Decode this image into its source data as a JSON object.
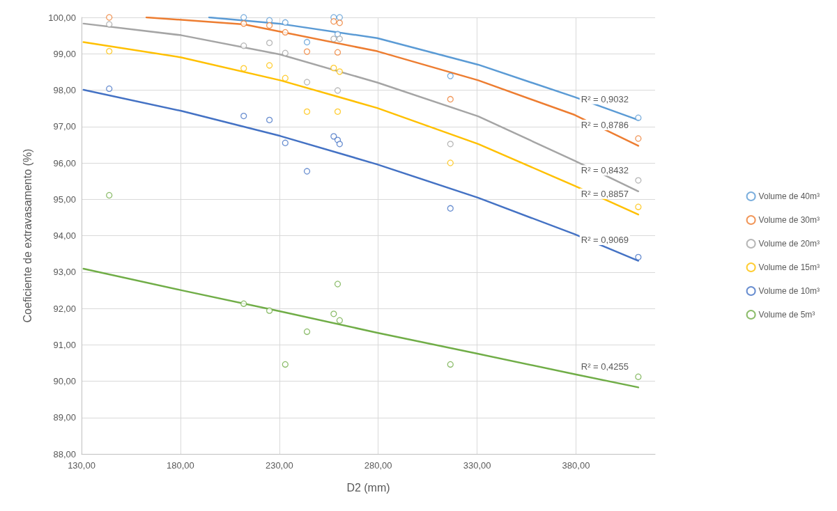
{
  "chart_data": {
    "type": "scatter",
    "xlabel": "D2 (mm)",
    "ylabel": "Coeficiente de extravasamento (%)",
    "xlim": [
      130,
      420
    ],
    "ylim": [
      88,
      100
    ],
    "xticks": [
      {
        "value": 130,
        "label": "130,00"
      },
      {
        "value": 180,
        "label": "180,00"
      },
      {
        "value": 230,
        "label": "230,00"
      },
      {
        "value": 280,
        "label": "280,00"
      },
      {
        "value": 330,
        "label": "330,00"
      },
      {
        "value": 380,
        "label": "380,00"
      }
    ],
    "yticks": [
      {
        "value": 88,
        "label": "88,00"
      },
      {
        "value": 89,
        "label": "89,00"
      },
      {
        "value": 90,
        "label": "90,00"
      },
      {
        "value": 91,
        "label": "91,00"
      },
      {
        "value": 92,
        "label": "92,00"
      },
      {
        "value": 93,
        "label": "93,00"
      },
      {
        "value": 94,
        "label": "94,00"
      },
      {
        "value": 95,
        "label": "95,00"
      },
      {
        "value": 96,
        "label": "96,00"
      },
      {
        "value": 97,
        "label": "97,00"
      },
      {
        "value": 98,
        "label": "98,00"
      },
      {
        "value": 99,
        "label": "99,00"
      },
      {
        "value": 100,
        "label": "100,00"
      }
    ],
    "grid": true,
    "legend": "right",
    "marker": "circle",
    "x": [
      144,
      212,
      225,
      233,
      244,
      257.5,
      259.5,
      260.5,
      316.5,
      411.5
    ],
    "series": [
      {
        "name": "Volume de 40m³",
        "color": "#5b9bd5",
        "values": [
          null,
          100,
          99.92,
          99.86,
          99.32,
          100,
          99.54,
          100,
          98.39,
          97.24
        ]
      },
      {
        "name": "Volume de 30m³",
        "color": "#ed7d31",
        "values": [
          100,
          99.83,
          99.78,
          99.59,
          99.06,
          99.89,
          99.04,
          99.85,
          97.75,
          96.67
        ]
      },
      {
        "name": "Volume de 20m³",
        "color": "#a5a5a5",
        "values": [
          99.81,
          99.22,
          99.3,
          99.02,
          98.22,
          99.41,
          97.99,
          99.41,
          96.52,
          95.52
        ]
      },
      {
        "name": "Volume de 15m³",
        "color": "#ffc000",
        "values": [
          99.07,
          98.6,
          98.68,
          98.33,
          97.41,
          98.61,
          97.41,
          98.51,
          96,
          94.79
        ]
      },
      {
        "name": "Volume de 10m³",
        "color": "#4472c4",
        "values": [
          98.04,
          97.29,
          97.18,
          96.55,
          95.77,
          96.73,
          96.63,
          96.52,
          94.75,
          93.41
        ]
      },
      {
        "name": "Volume de 5m³",
        "color": "#70ad47",
        "values": [
          95.11,
          92.13,
          91.94,
          90.46,
          91.36,
          91.85,
          92.67,
          91.67,
          90.46,
          90.12
        ]
      },
      {
        "type": "line",
        "marker": "none",
        "color": "#5b9bd5",
        "x": [
          194.5,
          229.8,
          279.5,
          330.6,
          379.3,
          411.5
        ],
        "values": [
          100,
          99.83,
          99.43,
          98.7,
          97.81,
          97.18
        ]
      },
      {
        "type": "line",
        "marker": "none",
        "color": "#ed7d31",
        "x": [
          162.8,
          212.2,
          279.5,
          330.6,
          379.3,
          411.5
        ],
        "values": [
          100,
          99.81,
          99.07,
          98.27,
          97.32,
          96.47
        ]
      },
      {
        "type": "line",
        "marker": "none",
        "color": "#a5a5a5",
        "x": [
          131,
          180.4,
          230.5,
          279.5,
          330.6,
          379.3,
          411.5
        ],
        "values": [
          99.83,
          99.51,
          98.98,
          98.21,
          97.28,
          96.06,
          95.22
        ]
      },
      {
        "type": "line",
        "marker": "none",
        "color": "#ffc000",
        "x": [
          131,
          180.4,
          230.5,
          279.5,
          330.6,
          379.3,
          411.5
        ],
        "values": [
          99.32,
          98.9,
          98.27,
          97.51,
          96.52,
          95.37,
          94.58
        ]
      },
      {
        "type": "line",
        "marker": "none",
        "color": "#4472c4",
        "x": [
          131,
          180.4,
          230.5,
          279.5,
          330.6,
          379.3,
          411.5
        ],
        "values": [
          98.01,
          97.43,
          96.74,
          95.96,
          95.04,
          94.04,
          93.31
        ]
      },
      {
        "type": "line",
        "marker": "none",
        "color": "#70ad47",
        "x": [
          131,
          180.4,
          230.5,
          279.5,
          330.6,
          379.3,
          411.5
        ],
        "values": [
          93.09,
          92.5,
          91.92,
          91.33,
          90.75,
          90.19,
          89.83
        ]
      }
    ],
    "annotations": [
      "R² = 0,9032",
      "R² = 0,8786",
      "R² = 0,8432",
      "R² = 0,8857",
      "R² = 0,9069",
      "R² = 0,4255"
    ]
  }
}
